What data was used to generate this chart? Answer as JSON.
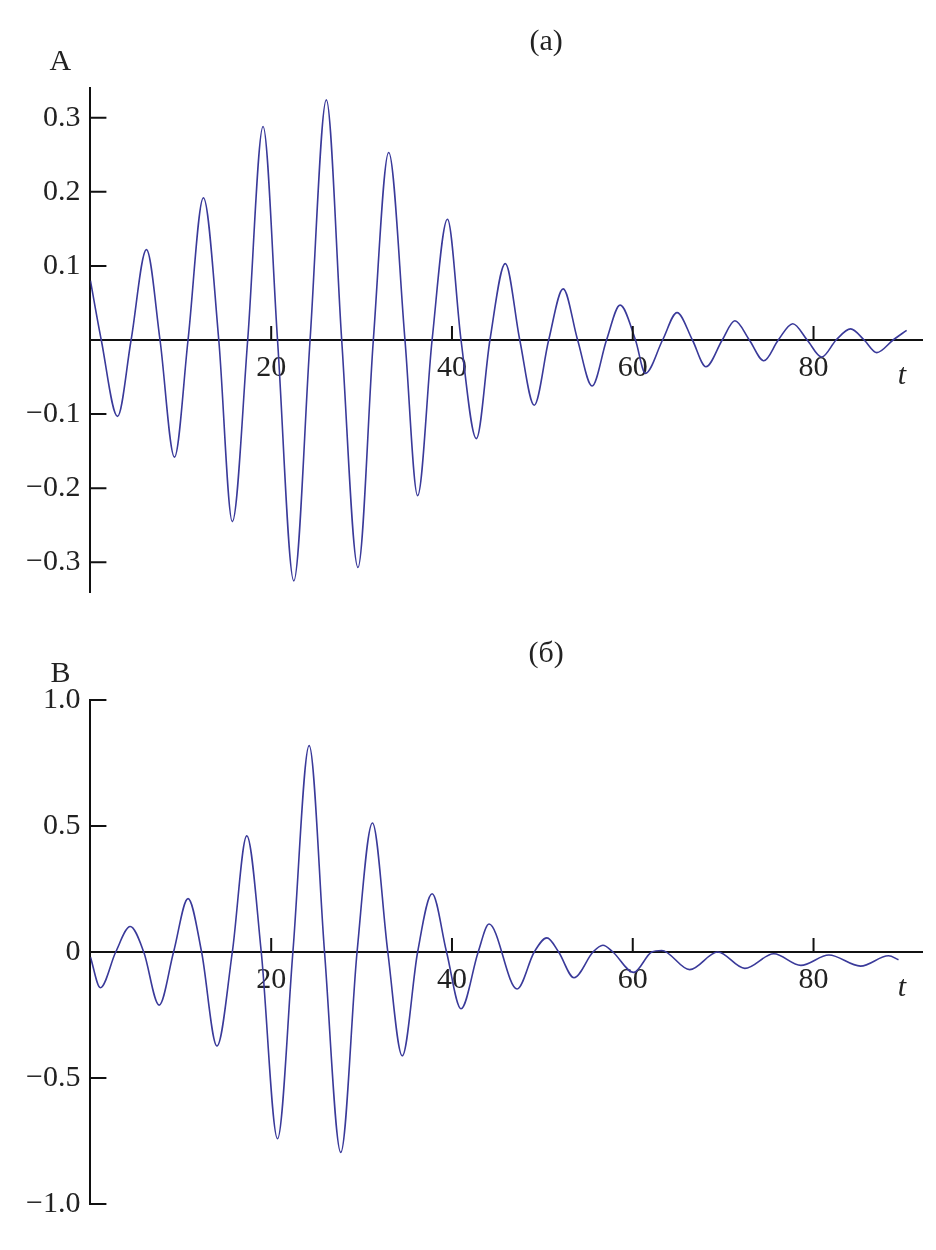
{
  "chart_data": [
    {
      "type": "line",
      "title": "(a)",
      "xlabel": "t",
      "ylabel": "A",
      "legend": false,
      "marker": "none",
      "xlim": [
        0,
        92
      ],
      "ylim": [
        -0.34,
        0.34
      ],
      "xticks": [
        20,
        40,
        60,
        80
      ],
      "yticks": [
        {
          "value": -0.3,
          "label": "−0.3"
        },
        {
          "value": -0.2,
          "label": "−0.2"
        },
        {
          "value": -0.1,
          "label": "−0.1"
        },
        0.1,
        0.2,
        0.3
      ],
      "series": [
        {
          "color": "#3a3a9a",
          "x": [
            0,
            1.2,
            3.0,
            4.5,
            6.2,
            7.7,
            9.3,
            10.8,
            12.5,
            14.2,
            15.7,
            17.4,
            19.1,
            20.7,
            22.5,
            24.3,
            26.1,
            27.8,
            29.6,
            31.3,
            33.0,
            34.8,
            36.2,
            37.8,
            39.5,
            41.0,
            42.7,
            44.2,
            45.9,
            47.5,
            49.1,
            50.7,
            52.3,
            53.9,
            55.5,
            57.1,
            58.6,
            60.3,
            61.4,
            63.3,
            64.9,
            66.6,
            68.1,
            69.9,
            71.3,
            72.9,
            74.5,
            76.1,
            77.7,
            79.3,
            80.9,
            82.5,
            84.1,
            85.6,
            87.0,
            88.8,
            90.3
          ],
          "values": [
            0.08,
            0,
            -0.103,
            0,
            0.122,
            0,
            -0.158,
            0,
            0.192,
            0,
            -0.245,
            0,
            0.288,
            0,
            -0.325,
            0,
            0.324,
            0,
            -0.307,
            0,
            0.253,
            0,
            -0.21,
            0,
            0.163,
            0,
            -0.133,
            0,
            0.103,
            0,
            -0.088,
            0,
            0.069,
            0,
            -0.062,
            0,
            0.047,
            0,
            -0.045,
            0,
            0.037,
            0,
            -0.036,
            0,
            0.026,
            0,
            -0.028,
            0,
            0.022,
            0,
            -0.023,
            0,
            0.015,
            0,
            -0.017,
            0,
            0.013
          ]
        }
      ]
    },
    {
      "type": "line",
      "title": "(б)",
      "xlabel": "t",
      "ylabel": "B",
      "legend": false,
      "marker": "none",
      "xlim": [
        0,
        92
      ],
      "ylim": [
        -1,
        1
      ],
      "xticks": [
        20,
        40,
        60,
        80
      ],
      "yticks": [
        {
          "value": -1,
          "label": "−1.0"
        },
        {
          "value": -0.5,
          "label": "−0.5"
        },
        0,
        0.5,
        {
          "value": 1,
          "label": "1.0"
        }
      ],
      "series": [
        {
          "color": "#3a3a9a",
          "x": [
            0,
            1.1,
            2.8,
            4.4,
            5.9,
            7.6,
            9.2,
            10.8,
            12.3,
            14.0,
            15.7,
            17.3,
            18.9,
            20.7,
            22.4,
            24.2,
            25.9,
            27.7,
            29.5,
            31.2,
            32.9,
            34.5,
            36.2,
            37.8,
            39.4,
            41.0,
            42.9,
            44.1,
            47.2,
            49.1,
            50.5,
            51.8,
            53.5,
            55.6,
            56.7,
            57.8,
            60.1,
            62.1,
            63.2,
            66.3,
            69.4,
            72.4,
            75.6,
            78.6,
            81.7,
            85.2,
            88.3,
            89.4
          ],
          "values": [
            -0.02,
            -0.142,
            0,
            0.101,
            0,
            -0.211,
            0,
            0.212,
            0,
            -0.373,
            0,
            0.461,
            0,
            -0.741,
            0,
            0.819,
            0,
            -0.795,
            0,
            0.512,
            0,
            -0.412,
            0,
            0.231,
            0,
            -0.225,
            0,
            0.111,
            -0.147,
            0,
            0.056,
            0,
            -0.102,
            0,
            0.027,
            0,
            -0.081,
            0,
            0.006,
            -0.07,
            0,
            -0.065,
            -0.007,
            -0.053,
            -0.012,
            -0.056,
            -0.015,
            -0.031
          ]
        }
      ]
    }
  ]
}
